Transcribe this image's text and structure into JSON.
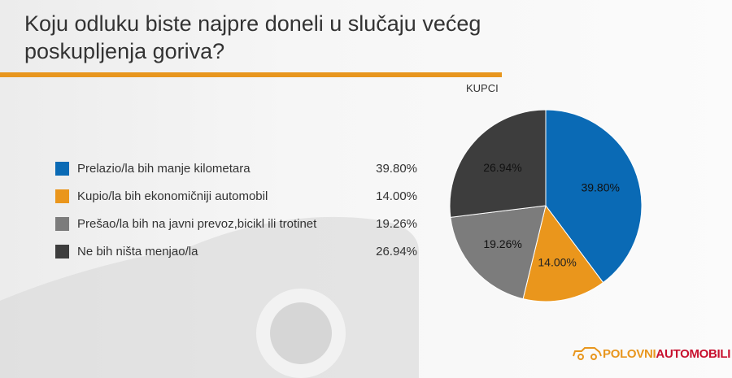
{
  "title": "Koju odluku biste najpre doneli u slučaju većeg poskupljenja goriva?",
  "group_label": "KUPCI",
  "logo": {
    "part1": "POLOVNI",
    "part2": "AUTOMOBILI",
    "color1": "#e8961e",
    "color2": "#c8102e"
  },
  "colors": {
    "accent": "#e8961e"
  },
  "chart_data": {
    "type": "pie",
    "title": "Koju odluku biste najpre doneli u slučaju većeg poskupljenja goriva?",
    "subtitle": "KUPCI",
    "legend_placement": "left",
    "slices": [
      {
        "label": "Prelazio/la bih manje kilometara",
        "value": 39.8,
        "display": "39.80%",
        "color": "#0a6ab5"
      },
      {
        "label": "Kupio/la bih ekonomičniji automobil",
        "value": 14.0,
        "display": "14.00%",
        "color": "#ea961c"
      },
      {
        "label": "Prešao/la bih na javni prevoz,bicikl ili trotinet",
        "value": 19.26,
        "display": "19.26%",
        "color": "#7c7c7c"
      },
      {
        "label": "Ne bih ništa menjao/la",
        "value": 26.94,
        "display": "26.94%",
        "color": "#3d3d3d"
      }
    ]
  }
}
